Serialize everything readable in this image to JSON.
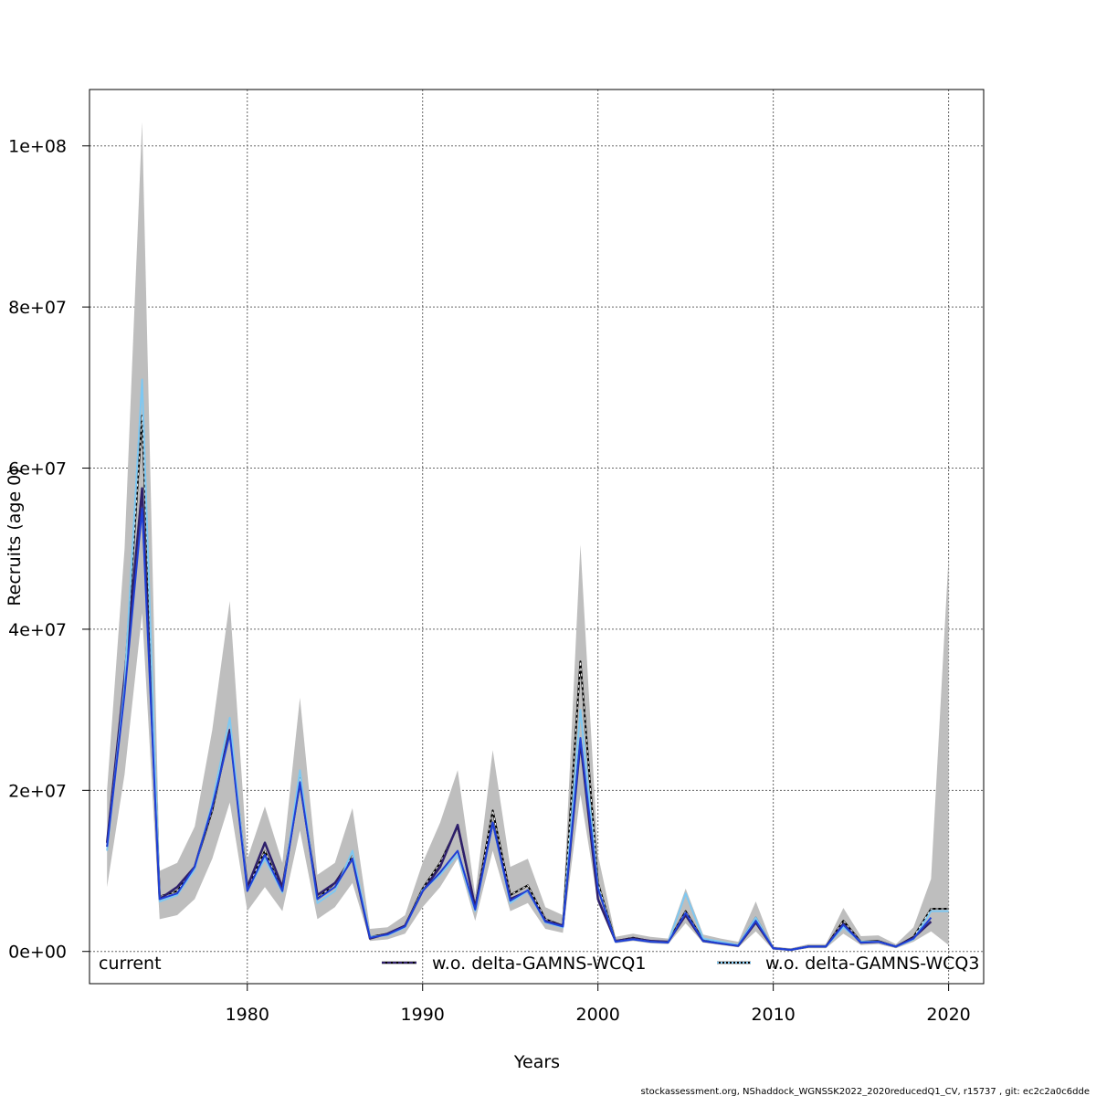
{
  "chart_data": {
    "type": "line",
    "xlabel": "Years",
    "ylabel": "Recruits (age 0)",
    "xlim": [
      1971,
      2022
    ],
    "ylim": [
      -4000000,
      107000000
    ],
    "x_ticks": [
      1980,
      1990,
      2000,
      2010,
      2020
    ],
    "x_tick_labels": [
      "1980",
      "1990",
      "2000",
      "2010",
      "2020"
    ],
    "y_ticks": [
      0,
      20000000,
      40000000,
      60000000,
      80000000,
      100000000
    ],
    "y_tick_labels": [
      "0e+00",
      "2e+07",
      "4e+07",
      "6e+07",
      "8e+07",
      "1e+08"
    ],
    "grid": true,
    "legend_position": "bottom",
    "years": [
      1972,
      1973,
      1974,
      1975,
      1976,
      1977,
      1978,
      1979,
      1980,
      1981,
      1982,
      1983,
      1984,
      1985,
      1986,
      1987,
      1988,
      1989,
      1990,
      1991,
      1992,
      1993,
      1994,
      1995,
      1996,
      1997,
      1998,
      1999,
      2000,
      2001,
      2002,
      2003,
      2004,
      2005,
      2006,
      2007,
      2008,
      2009,
      2010,
      2011,
      2012,
      2013,
      2014,
      2015,
      2016,
      2017,
      2018,
      2019,
      2020
    ],
    "band": {
      "name": "current",
      "color": "#bebebe",
      "lower": [
        8000000,
        22000000,
        42000000,
        4000000,
        4500000,
        6500000,
        11500000,
        18500000,
        5000000,
        8000000,
        5000000,
        15000000,
        4000000,
        5500000,
        8500000,
        1300000,
        1500000,
        2200000,
        5500000,
        8000000,
        11500000,
        3800000,
        12500000,
        5000000,
        6000000,
        2800000,
        2300000,
        19500000,
        6000000,
        1000000,
        1300000,
        1000000,
        900000,
        3500000,
        1100000,
        800000,
        500000,
        2500000,
        200000,
        100000,
        400000,
        400000,
        2200000,
        800000,
        900000,
        400000,
        1200000,
        2500000,
        800000
      ],
      "upper": [
        20000000,
        50000000,
        103000000,
        10000000,
        11000000,
        15500000,
        27500000,
        43500000,
        11500000,
        18000000,
        11000000,
        31500000,
        9500000,
        11000000,
        17800000,
        2800000,
        3000000,
        4500000,
        11000000,
        16000000,
        22500000,
        7000000,
        25000000,
        10500000,
        11500000,
        5500000,
        4500000,
        50500000,
        12000000,
        1800000,
        2200000,
        1800000,
        1600000,
        7800000,
        2100000,
        1600000,
        1200000,
        6200000,
        600000,
        400000,
        900000,
        900000,
        5400000,
        1900000,
        2000000,
        900000,
        3000000,
        9000000,
        49000000
      ]
    },
    "series": [
      {
        "name": "current",
        "color": "#000000",
        "dash": "",
        "values": [
          13000000,
          33500000,
          66500000,
          6800000,
          7500000,
          10500000,
          17500000,
          27500000,
          7800000,
          12500000,
          7500000,
          21500000,
          6500000,
          8500000,
          11800000,
          1800000,
          2200000,
          3200000,
          7800000,
          11000000,
          15500000,
          5500000,
          17500000,
          7000000,
          8200000,
          4000000,
          3200000,
          36000000,
          8500000,
          1300000,
          1700000,
          1300000,
          1200000,
          5000000,
          1400000,
          1100000,
          800000,
          4200000,
          400000,
          200000,
          600000,
          600000,
          3800000,
          1200000,
          1300000,
          600000,
          1800000,
          5300000,
          5300000
        ]
      },
      {
        "name": "w.o. delta-GAMNS-WCQ1",
        "color": "#2e1f6b",
        "dash": "",
        "values": [
          13500000,
          34000000,
          57500000,
          6500000,
          8000000,
          10500000,
          18000000,
          27500000,
          8000000,
          13500000,
          8000000,
          21000000,
          7000000,
          8500000,
          11500000,
          1600000,
          2200000,
          3200000,
          7500000,
          10500000,
          15700000,
          5500000,
          16000000,
          6500000,
          7500000,
          3800000,
          3200000,
          26000000,
          6500000,
          1300000,
          1600000,
          1300000,
          1200000,
          4500000,
          1300000,
          1000000,
          700000,
          3600000,
          400000,
          200000,
          600000,
          600000,
          3400000,
          1100000,
          1200000,
          600000,
          1700000,
          3700000,
          null
        ]
      },
      {
        "name": "w.o. delta-GAMNS-WCQ3",
        "color": "#7ec8f2",
        "dash": "",
        "values": [
          12500000,
          33000000,
          71000000,
          6200000,
          7000000,
          10200000,
          18500000,
          29000000,
          7500000,
          11500000,
          7300000,
          22500000,
          6000000,
          7500000,
          12500000,
          1800000,
          2000000,
          3000000,
          7600000,
          9500000,
          12000000,
          5000000,
          16000000,
          6000000,
          7500000,
          3600000,
          3000000,
          30000000,
          8000000,
          1200000,
          1500000,
          1200000,
          1100000,
          7200000,
          1600000,
          1200000,
          800000,
          4200000,
          400000,
          200000,
          600000,
          600000,
          3000000,
          1200000,
          1200000,
          600000,
          1500000,
          5000000,
          5000000
        ]
      },
      {
        "name": "w.o. delta-GAMNS-WCQ1",
        "color": "#1f3fd6",
        "dash": "",
        "values": [
          13000000,
          32000000,
          55000000,
          6500000,
          7200000,
          10500000,
          18000000,
          27000000,
          7500000,
          12000000,
          7500000,
          21000000,
          6500000,
          8000000,
          11500000,
          1700000,
          2100000,
          3100000,
          7500000,
          9800000,
          12500000,
          5200000,
          16000000,
          6300000,
          7600000,
          3700000,
          3100000,
          26500000,
          7800000,
          1200000,
          1500000,
          1200000,
          1100000,
          4800000,
          1300000,
          1000000,
          700000,
          3800000,
          400000,
          200000,
          600000,
          600000,
          3300000,
          1100000,
          1200000,
          600000,
          1600000,
          4200000,
          null
        ]
      }
    ],
    "legend": [
      {
        "label": "current",
        "type": "none",
        "color": "#bebebe"
      },
      {
        "label": "w.o. delta-GAMNS-WCQ1",
        "type": "line",
        "color": "#2e1f6b",
        "dash": "4,2"
      },
      {
        "label": "w.o. delta-GAMNS-WCQ3",
        "type": "line",
        "color": "#7ec8f2",
        "dash": "2,2"
      }
    ],
    "footer": "stockassessment.org, NShaddock_WGNSSK2022_2020reducedQ1_CV, r15737 , git: ec2c2a0c6dde"
  }
}
